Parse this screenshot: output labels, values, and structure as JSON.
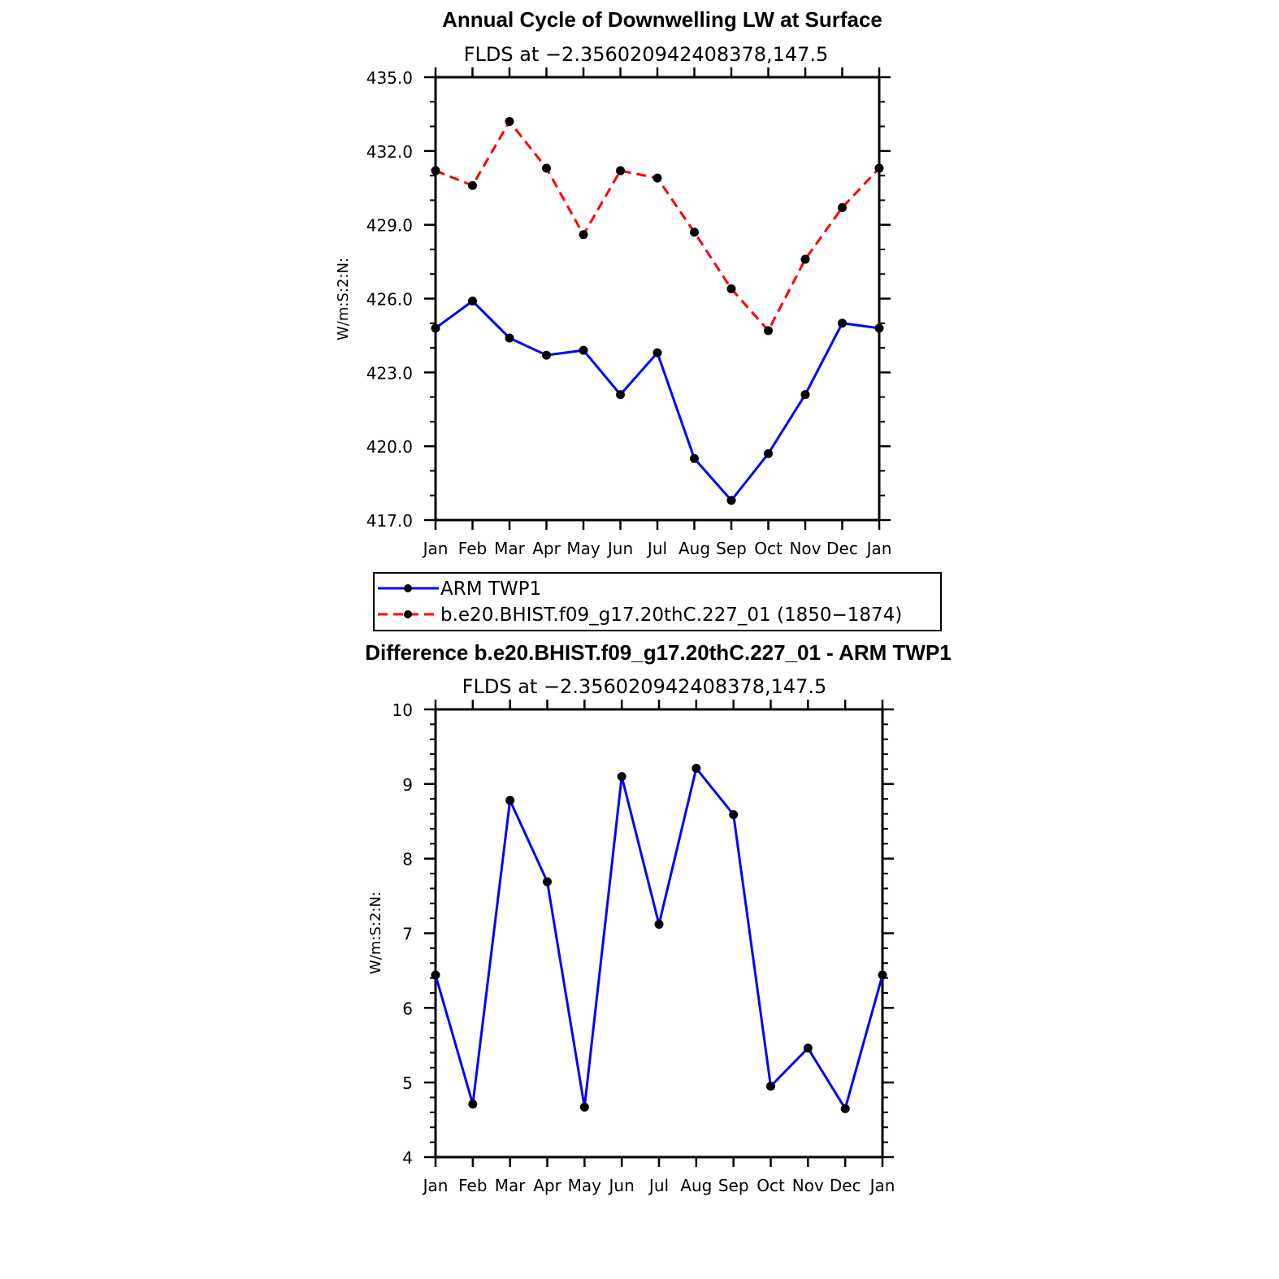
{
  "chart_data": [
    {
      "type": "line",
      "title": "Annual Cycle of Downwelling LW at Surface",
      "subtitle": "FLDS at −2.356020942408378,147.5",
      "ylabel": "W/m:S:2:N:",
      "categories": [
        "Jan",
        "Feb",
        "Mar",
        "Apr",
        "May",
        "Jun",
        "Jul",
        "Aug",
        "Sep",
        "Oct",
        "Nov",
        "Dec",
        "Jan"
      ],
      "ylim": [
        417.0,
        435.0
      ],
      "yticks": [
        "417.0",
        "420.0",
        "423.0",
        "426.0",
        "429.0",
        "432.0",
        "435.0"
      ],
      "series": [
        {
          "name": "ARM TWP1",
          "color": "#0000ff",
          "dash": "solid",
          "values": [
            424.8,
            425.9,
            424.4,
            423.7,
            423.9,
            422.1,
            423.8,
            419.5,
            417.8,
            419.7,
            422.1,
            425.0,
            424.8
          ]
        },
        {
          "name": "b.e20.BHIST.f09_g17.20thC.227_01 (1850−1874)",
          "color": "#ff0000",
          "dash": "dashed",
          "values": [
            431.2,
            430.6,
            433.2,
            431.3,
            428.6,
            431.2,
            430.9,
            428.7,
            426.4,
            424.7,
            427.6,
            429.7,
            431.3
          ]
        }
      ],
      "legend": "below"
    },
    {
      "type": "line",
      "title": "Difference b.e20.BHIST.f09_g17.20thC.227_01 - ARM TWP1",
      "subtitle": "FLDS at −2.356020942408378,147.5",
      "ylabel": "W/m:S:2:N:",
      "categories": [
        "Jan",
        "Feb",
        "Mar",
        "Apr",
        "May",
        "Jun",
        "Jul",
        "Aug",
        "Sep",
        "Oct",
        "Nov",
        "Dec",
        "Jan"
      ],
      "ylim": [
        4,
        10
      ],
      "yticks": [
        "4",
        "5",
        "6",
        "7",
        "8",
        "9",
        "10"
      ],
      "series": [
        {
          "color": "#0000ff",
          "dash": "solid",
          "values": [
            6.44,
            4.71,
            8.78,
            7.69,
            4.67,
            9.1,
            7.12,
            9.21,
            8.59,
            4.95,
            5.46,
            4.65,
            6.44
          ]
        }
      ]
    }
  ]
}
